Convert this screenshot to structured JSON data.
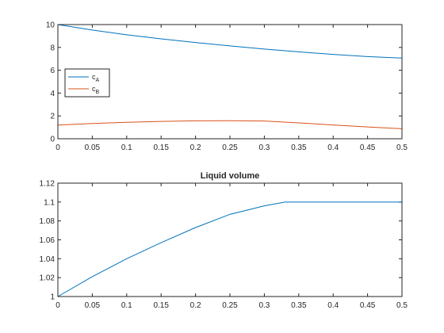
{
  "chart_data": [
    {
      "type": "line",
      "title": "",
      "xlabel": "",
      "ylabel": "",
      "xlim": [
        0,
        0.5
      ],
      "ylim": [
        0,
        10
      ],
      "xticks": [
        "0",
        "0.05",
        "0.1",
        "0.15",
        "0.2",
        "0.25",
        "0.3",
        "0.35",
        "0.4",
        "0.45",
        "0.5"
      ],
      "yticks": [
        "0",
        "2",
        "4",
        "6",
        "8",
        "10"
      ],
      "grid": false,
      "legend_position": "left",
      "series": [
        {
          "name": "c",
          "subscript": "A",
          "color": "#0072BD",
          "x": [
            0,
            0.05,
            0.1,
            0.15,
            0.2,
            0.25,
            0.3,
            0.35,
            0.4,
            0.45,
            0.5
          ],
          "y": [
            10,
            9.52,
            9.11,
            8.75,
            8.43,
            8.13,
            7.86,
            7.61,
            7.39,
            7.2,
            7.07
          ]
        },
        {
          "name": "c",
          "subscript": "B",
          "color": "#D95319",
          "x": [
            0,
            0.05,
            0.1,
            0.15,
            0.2,
            0.25,
            0.3,
            0.35,
            0.4,
            0.45,
            0.5
          ],
          "y": [
            1.2,
            1.34,
            1.44,
            1.52,
            1.57,
            1.58,
            1.55,
            1.39,
            1.21,
            1.03,
            0.88
          ]
        }
      ]
    },
    {
      "type": "line",
      "title": "Liquid volume",
      "xlabel": "",
      "ylabel": "",
      "xlim": [
        0,
        0.5
      ],
      "ylim": [
        1,
        1.12
      ],
      "xticks": [
        "0",
        "0.05",
        "0.1",
        "0.15",
        "0.2",
        "0.25",
        "0.3",
        "0.35",
        "0.4",
        "0.45",
        "0.5"
      ],
      "yticks": [
        "1",
        "1.02",
        "1.04",
        "1.06",
        "1.08",
        "1.1",
        "1.12"
      ],
      "grid": false,
      "series": [
        {
          "color": "#0072BD",
          "x": [
            0,
            0.05,
            0.1,
            0.15,
            0.2,
            0.25,
            0.3,
            0.33,
            0.35,
            0.4,
            0.45,
            0.5
          ],
          "y": [
            1.0,
            1.021,
            1.04,
            1.057,
            1.073,
            1.087,
            1.096,
            1.1,
            1.1,
            1.1,
            1.1,
            1.1
          ]
        }
      ]
    }
  ]
}
